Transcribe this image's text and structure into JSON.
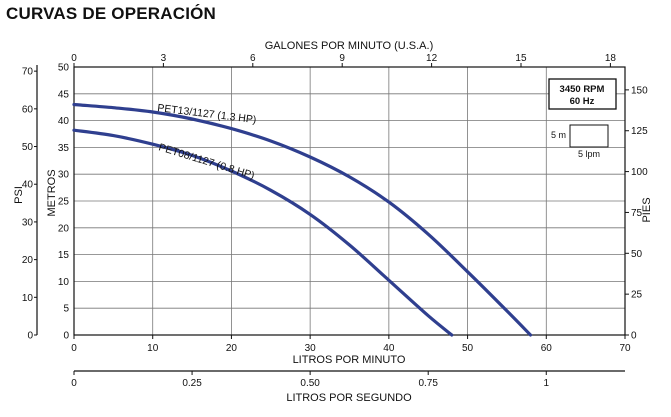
{
  "title": "CURVAS DE OPERACIÓN",
  "chart_data": {
    "type": "line",
    "xlabel": "LITROS POR MINUTO",
    "xlim": [
      0,
      70
    ],
    "xticks": [
      0,
      10,
      20,
      30,
      40,
      50,
      60,
      70
    ],
    "ylabel": "METROS",
    "ylim": [
      0,
      50
    ],
    "yticks": [
      0,
      5,
      10,
      15,
      20,
      25,
      30,
      35,
      40,
      45,
      50
    ],
    "grid": true,
    "top_axis": {
      "label": "GALONES POR MINUTO (U.S.A.)",
      "ticks": [
        0,
        3,
        6,
        9,
        12,
        15,
        18
      ],
      "lim": [
        0,
        18.49
      ]
    },
    "outer_left_axis": {
      "label": "PSI",
      "ticks": [
        0,
        10,
        20,
        30,
        40,
        50,
        60,
        70
      ],
      "lim": [
        0,
        71.1
      ]
    },
    "right_axis": {
      "label": "PIES",
      "ticks": [
        0,
        25,
        50,
        75,
        100,
        125,
        150
      ],
      "lim": [
        0,
        164
      ]
    },
    "bottom_axis_2": {
      "label": "LITROS POR SEGUNDO",
      "ticks": [
        "0",
        "0.25",
        "0.50",
        "0.75",
        "1"
      ],
      "tick_values": [
        0,
        0.25,
        0.5,
        0.75,
        1.0
      ],
      "lim": [
        0,
        1.1667
      ]
    },
    "series": [
      {
        "name": "PET13/1127 (1.3 HP)",
        "x": [
          0,
          5,
          10,
          15,
          20,
          25,
          30,
          35,
          40,
          45,
          50,
          55,
          58
        ],
        "y": [
          43,
          42.4,
          41.6,
          40.3,
          38.5,
          36.2,
          33.2,
          29.5,
          24.8,
          18.8,
          11.8,
          4.5,
          0
        ]
      },
      {
        "name": "PET08/1127 (0.8 HP)",
        "x": [
          0,
          5,
          10,
          15,
          20,
          25,
          30,
          35,
          40,
          45,
          48
        ],
        "y": [
          38.2,
          37.2,
          35.6,
          33.5,
          30.6,
          27.0,
          22.5,
          16.8,
          10.2,
          3.6,
          0
        ]
      }
    ],
    "annotations": {
      "rpm": "3450 RPM",
      "hz": "60 Hz",
      "scale_height": "5 m",
      "scale_flow": "5 lpm"
    }
  }
}
